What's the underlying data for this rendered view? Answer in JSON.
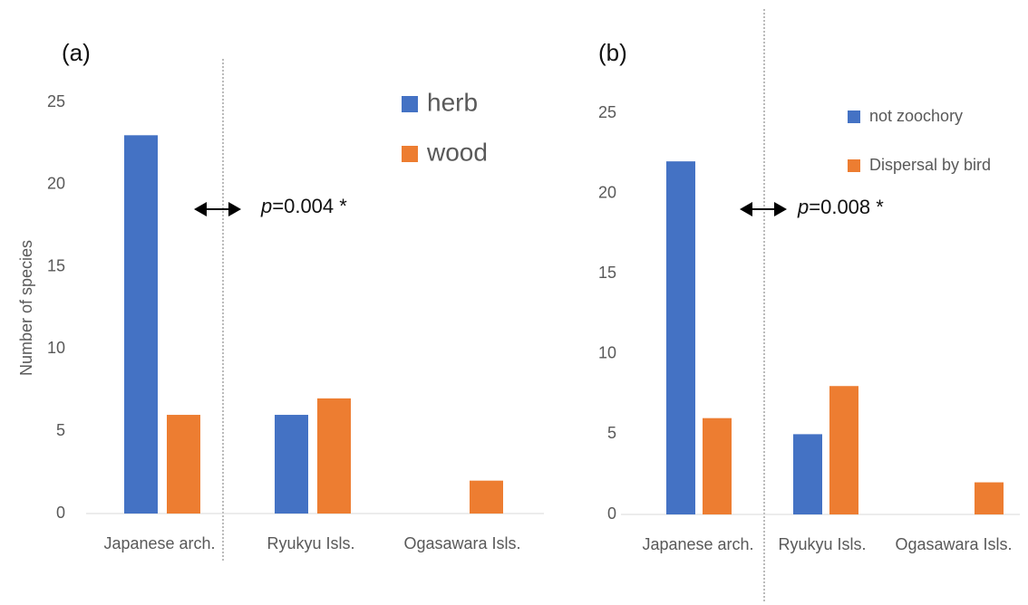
{
  "chart_data": [
    {
      "type": "bar",
      "panel_label": "(a)",
      "y_label": "Number of species",
      "categories": [
        "Japanese arch.",
        "Ryukyu Isls.",
        "Ogasawara Isls."
      ],
      "series": [
        {
          "name": "herb",
          "color": "#4472c4",
          "values": [
            23,
            6,
            0
          ]
        },
        {
          "name": "wood",
          "color": "#ed7d31",
          "values": [
            6,
            7,
            2
          ]
        }
      ],
      "ylim": [
        0,
        25
      ],
      "yticks": [
        0,
        5,
        10,
        15,
        20,
        25
      ],
      "annotation": [
        "p",
        "=0.004 *"
      ]
    },
    {
      "type": "bar",
      "panel_label": "(b)",
      "categories": [
        "Japanese arch.",
        "Ryukyu Isls.",
        "Ogasawara Isls."
      ],
      "series": [
        {
          "name": "not zoochory",
          "color": "#4472c4",
          "values": [
            22,
            5,
            0
          ]
        },
        {
          "name": "Dispersal by bird",
          "color": "#ed7d31",
          "values": [
            6,
            8,
            2
          ]
        }
      ],
      "ylim": [
        0,
        25
      ],
      "yticks": [
        0,
        5,
        10,
        15,
        20,
        25
      ],
      "annotation": [
        "p",
        "=0.008 *"
      ]
    }
  ]
}
